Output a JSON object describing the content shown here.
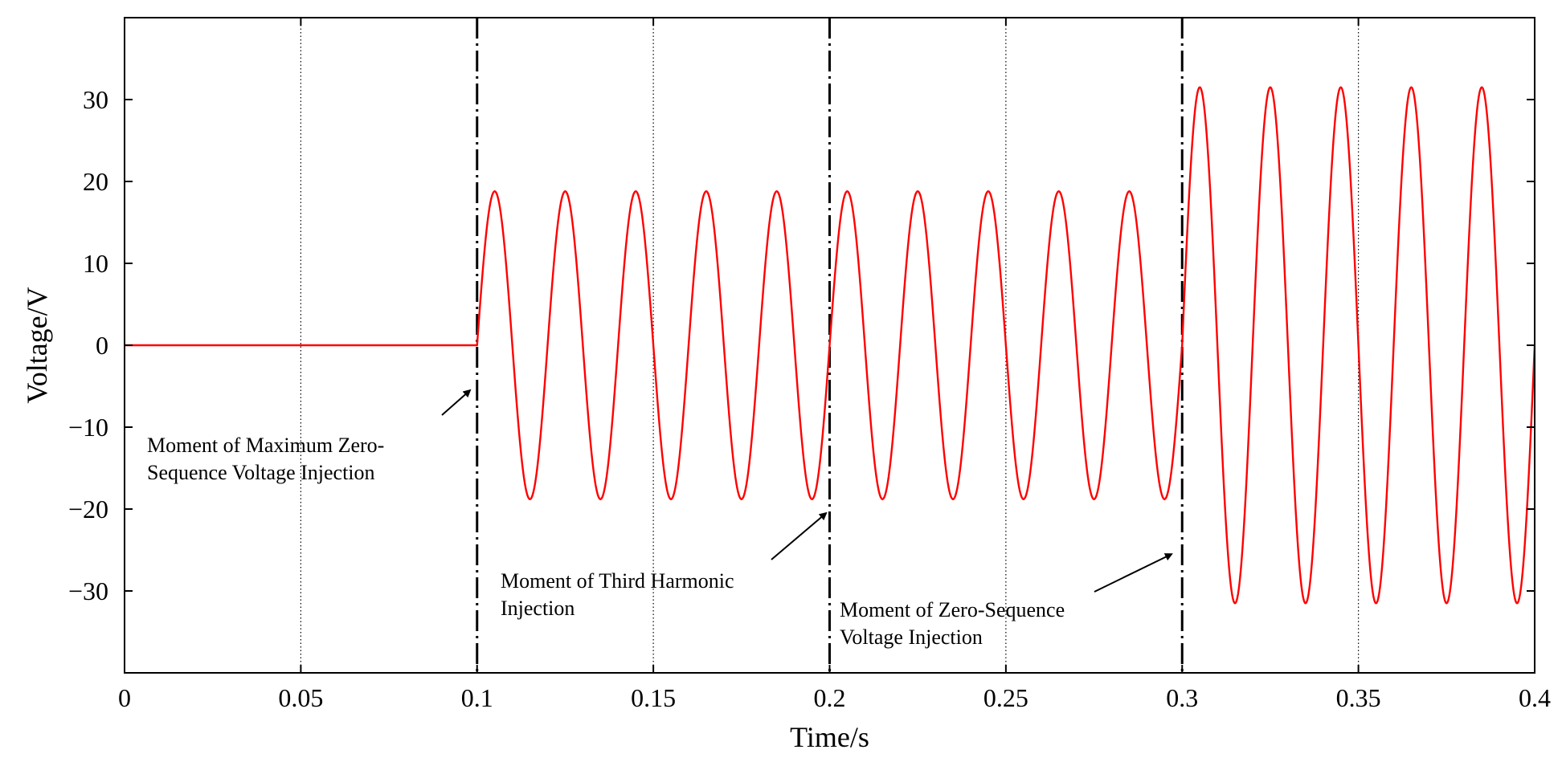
{
  "chart_data": {
    "type": "line",
    "title": "",
    "xlabel": "Time/s",
    "ylabel": "Voltage/V",
    "xlim": [
      0,
      0.4
    ],
    "ylim": [
      -40,
      40
    ],
    "x_ticks": [
      0,
      0.05,
      0.1,
      0.15,
      0.2,
      0.25,
      0.3,
      0.35,
      0.4
    ],
    "x_tick_labels": [
      "0",
      "0.05",
      "0.1",
      "0.15",
      "0.2",
      "0.25",
      "0.3",
      "0.35",
      "0.4"
    ],
    "y_ticks": [
      30,
      20,
      10,
      0,
      -10,
      -20,
      -30
    ],
    "y_tick_labels": [
      "30",
      "20",
      "10",
      "0",
      "−10",
      "−20",
      "−30"
    ],
    "grid": "vertical dotted lines at x ticks",
    "legend": "none",
    "series": [
      {
        "color": "#ff0000",
        "segments": [
          {
            "x_start": 0,
            "x_end": 0.1,
            "kind": "constant",
            "value": 0
          },
          {
            "x_start": 0.1,
            "x_end": 0.3,
            "kind": "sinusoid",
            "amplitude": 18.8,
            "frequency_hz": 50,
            "phase": "sine"
          },
          {
            "x_start": 0.3,
            "x_end": 0.4,
            "kind": "sinusoid",
            "amplitude": 31.5,
            "frequency_hz": 50,
            "phase": "sine"
          }
        ]
      }
    ],
    "event_lines": [
      {
        "x": 0.1,
        "style": "dash-dot"
      },
      {
        "x": 0.2,
        "style": "dash-dot"
      },
      {
        "x": 0.3,
        "style": "dash-dot"
      }
    ],
    "annotations": [
      {
        "lines": [
          "Moment of Maximum Zero-",
          "Sequence Voltage Injection"
        ],
        "arrow_to": {
          "x": 0.098,
          "y": -5.5
        }
      },
      {
        "lines": [
          "Moment of Third Harmonic",
          "Injection"
        ],
        "arrow_to": {
          "x": 0.199,
          "y": -20.5
        }
      },
      {
        "lines": [
          "Moment of Zero-Sequence",
          "Voltage Injection"
        ],
        "arrow_to": {
          "x": 0.297,
          "y": -25.5
        }
      }
    ]
  }
}
